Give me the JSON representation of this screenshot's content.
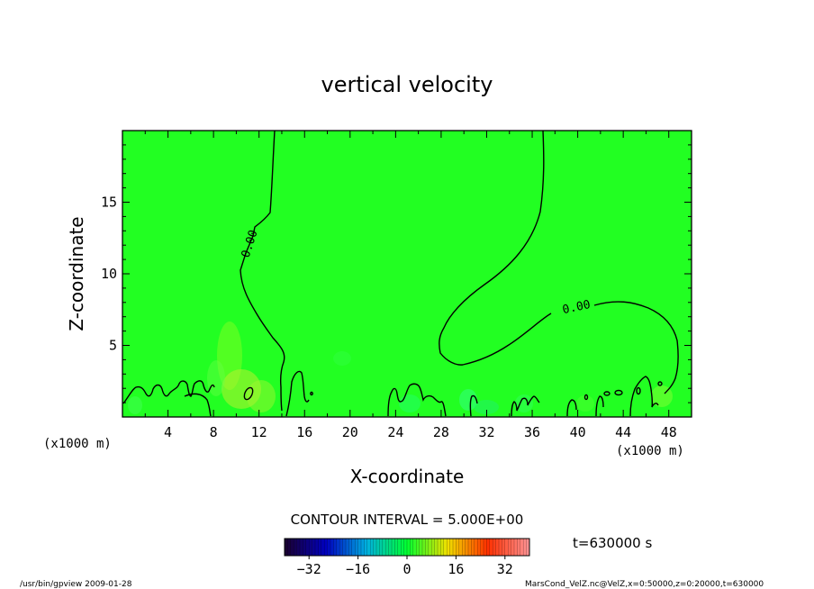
{
  "chart_data": {
    "type": "heatmap",
    "title": "vertical velocity",
    "xlabel": "X-coordinate",
    "ylabel": "Z-coordinate",
    "x_units_left": "(x1000 m)",
    "x_units_right": "(x1000 m)",
    "xlim": [
      0,
      50
    ],
    "ylim": [
      0,
      20
    ],
    "x_ticks": [
      4,
      8,
      12,
      16,
      20,
      24,
      28,
      32,
      36,
      40,
      44,
      48
    ],
    "y_ticks": [
      5,
      10,
      15
    ],
    "contour_interval_text": "CONTOUR INTERVAL = 5.000E+00",
    "contour_labels": [
      "0.00",
      "0.00"
    ],
    "time_text": "t=630000 s",
    "colorbar": {
      "min": -40,
      "max": 40,
      "ticks": [
        -32,
        -16,
        0,
        16,
        32
      ],
      "colors": [
        "#1a0033",
        "#0000c0",
        "#00b0e0",
        "#00ff30",
        "#f0e000",
        "#ff3000",
        "#ff9090"
      ]
    },
    "background_color": "#22ff22",
    "footer_left": "/usr/bin/gpview  2009-01-28",
    "footer_right": "MarsCond_VelZ.nc@VelZ,x=0:50000,z=0:20000,t=630000"
  }
}
